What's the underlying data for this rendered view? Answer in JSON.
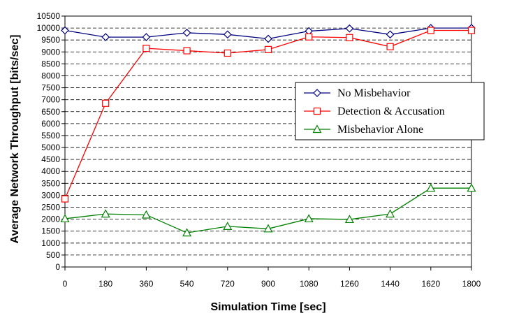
{
  "chart_data": {
    "type": "line",
    "title": "",
    "xlabel": "Simulation Time [sec]",
    "ylabel": "Average Network Throughput [bits/sec]",
    "x": [
      0,
      180,
      360,
      540,
      720,
      900,
      1080,
      1260,
      1440,
      1620,
      1800
    ],
    "x_tick_labels": [
      "0",
      "180",
      "360",
      "540",
      "720",
      "900",
      "1080",
      "1260",
      "1440",
      "1620",
      "1800"
    ],
    "ylim": [
      0,
      10500
    ],
    "y_ticks": [
      0,
      500,
      1000,
      1500,
      2000,
      2500,
      3000,
      3500,
      4000,
      4500,
      5000,
      5500,
      6000,
      6500,
      7000,
      7500,
      8000,
      8500,
      9000,
      9500,
      10000,
      10500
    ],
    "grid": true,
    "legend_position": "right",
    "series": [
      {
        "name": "No Misbehavior",
        "color": "#000080",
        "marker": "diamond",
        "values": [
          9900,
          9620,
          9620,
          9800,
          9730,
          9550,
          9870,
          9980,
          9730,
          10000,
          10000
        ]
      },
      {
        "name": "Detection & Accusation",
        "color": "#ff0000",
        "marker": "square",
        "values": [
          2850,
          6850,
          9150,
          9050,
          8950,
          9100,
          9630,
          9600,
          9220,
          9900,
          9900
        ]
      },
      {
        "name": "Misbehavior Alone",
        "color": "#008000",
        "marker": "triangle",
        "values": [
          2020,
          2220,
          2180,
          1430,
          1700,
          1600,
          2020,
          1990,
          2220,
          3300,
          3300
        ]
      }
    ]
  }
}
